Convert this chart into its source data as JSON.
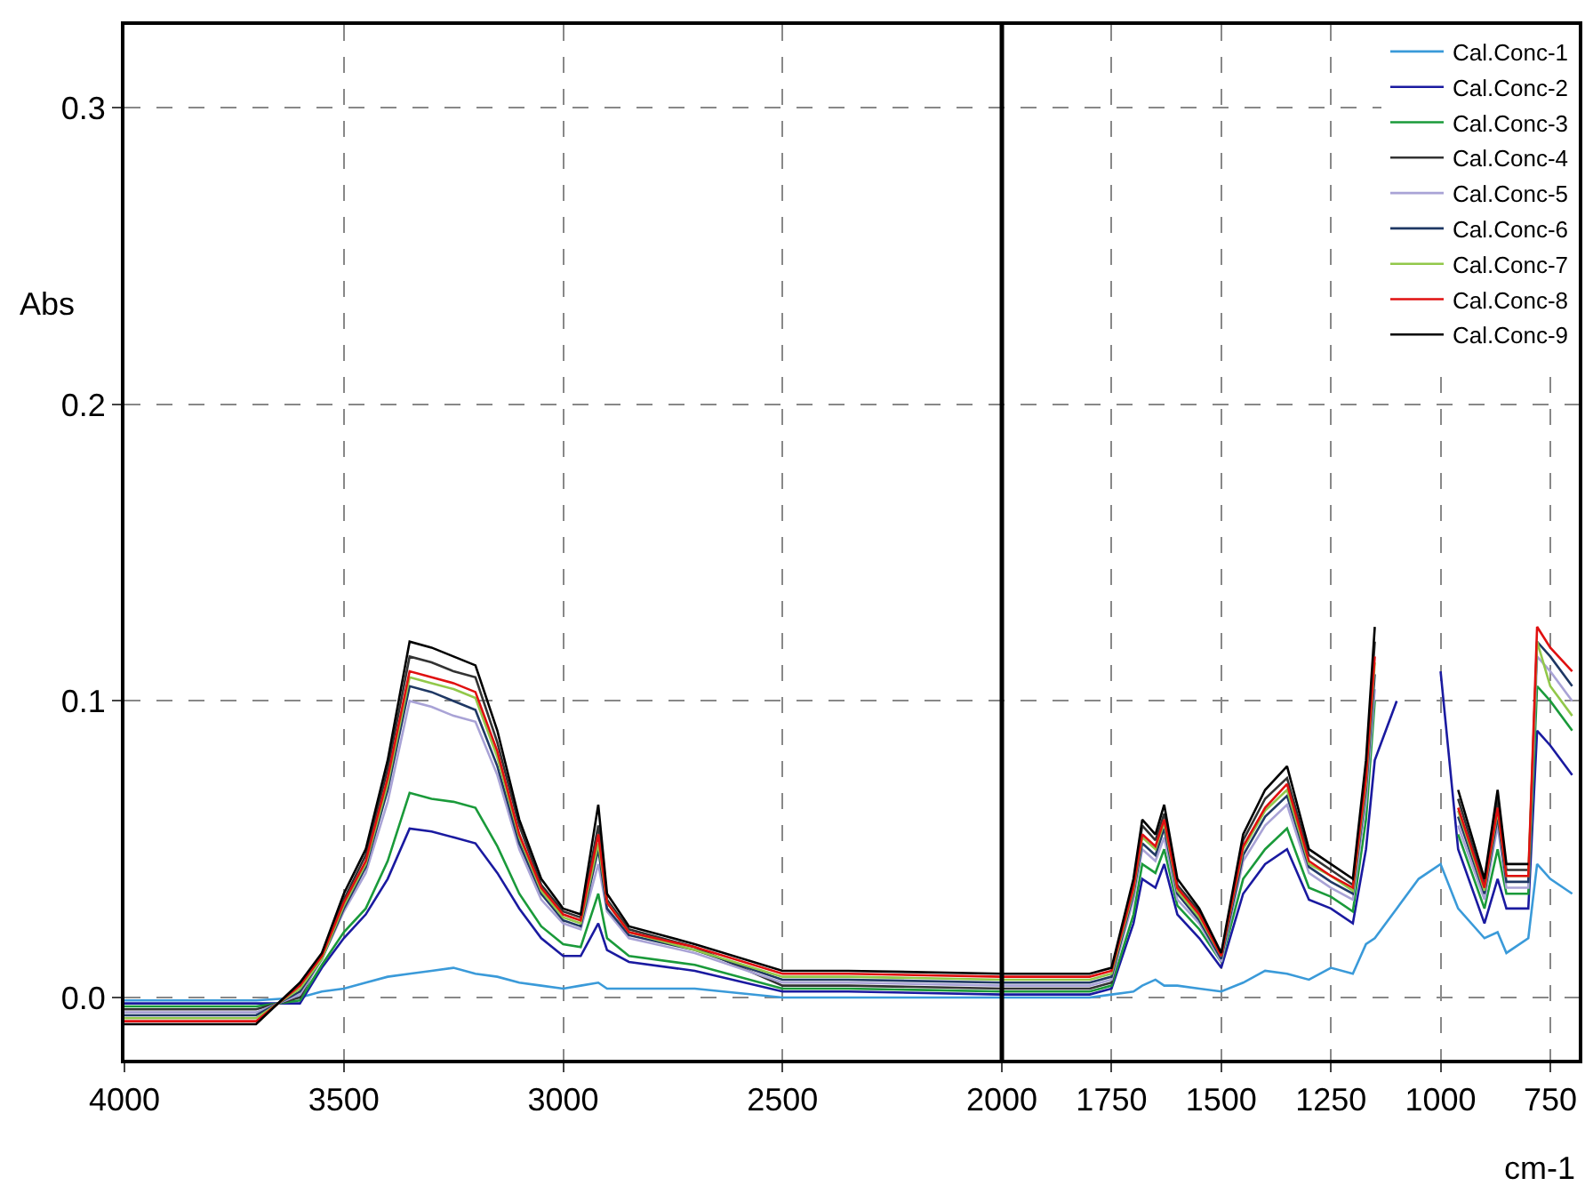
{
  "chart_data": {
    "type": "line",
    "xlabel": "cm-1",
    "ylabel": "Abs",
    "x": [
      4000,
      3700,
      3600,
      3550,
      3500,
      3450,
      3400,
      3350,
      3300,
      3250,
      3200,
      3150,
      3100,
      3050,
      3000,
      2960,
      2920,
      2900,
      2850,
      2700,
      2500,
      2350,
      2000,
      1800,
      1750,
      1700,
      1680,
      1650,
      1630,
      1600,
      1550,
      1500,
      1450,
      1400,
      1350,
      1300,
      1250,
      1200,
      1170,
      1150,
      1100,
      1050,
      1000,
      960,
      900,
      870,
      850,
      800,
      780,
      750,
      700
    ],
    "series": [
      {
        "name": "Cal.Conc-1",
        "color": "#3a9ad9",
        "values": [
          -0.001,
          -0.001,
          0.0,
          0.002,
          0.003,
          0.005,
          0.007,
          0.008,
          0.009,
          0.01,
          0.008,
          0.007,
          0.005,
          0.004,
          0.003,
          0.004,
          0.005,
          0.003,
          0.003,
          0.003,
          0.0,
          0.0,
          0.0,
          0.0,
          0.001,
          0.002,
          0.004,
          0.006,
          0.004,
          0.004,
          0.003,
          0.002,
          0.005,
          0.009,
          0.008,
          0.006,
          0.01,
          0.008,
          0.018,
          0.02,
          0.03,
          0.04,
          0.045,
          0.03,
          0.02,
          0.022,
          0.015,
          0.02,
          0.045,
          0.04,
          0.035
        ]
      },
      {
        "name": "Cal.Conc-2",
        "color": "#1a1aa0",
        "values": [
          -0.002,
          -0.002,
          -0.002,
          0.01,
          0.02,
          0.028,
          0.04,
          0.057,
          0.056,
          0.054,
          0.052,
          0.042,
          0.03,
          0.02,
          0.014,
          0.014,
          0.025,
          0.016,
          0.012,
          0.009,
          0.002,
          0.002,
          0.001,
          0.001,
          0.003,
          0.025,
          0.04,
          0.037,
          0.045,
          0.028,
          0.02,
          0.01,
          0.035,
          0.045,
          0.05,
          0.033,
          0.03,
          0.025,
          0.05,
          0.08,
          0.1,
          null,
          0.11,
          0.05,
          0.025,
          0.04,
          0.03,
          0.03,
          0.09,
          0.085,
          0.075
        ]
      },
      {
        "name": "Cal.Conc-3",
        "color": "#1a9a3a",
        "values": [
          -0.003,
          -0.003,
          -0.001,
          0.011,
          0.022,
          0.03,
          0.046,
          0.069,
          0.067,
          0.066,
          0.064,
          0.051,
          0.035,
          0.024,
          0.018,
          0.017,
          0.035,
          0.02,
          0.014,
          0.011,
          0.003,
          0.003,
          0.002,
          0.002,
          0.004,
          0.028,
          0.045,
          0.042,
          0.05,
          0.031,
          0.023,
          0.012,
          0.04,
          0.05,
          0.057,
          0.037,
          0.034,
          0.029,
          0.06,
          0.1,
          null,
          null,
          null,
          0.055,
          0.03,
          0.05,
          0.035,
          0.035,
          0.105,
          0.1,
          0.09
        ]
      },
      {
        "name": "Cal.Conc-4",
        "color": "#333333",
        "values": [
          -0.004,
          -0.004,
          0.0,
          0.014,
          0.033,
          0.048,
          0.077,
          0.115,
          0.113,
          0.11,
          0.108,
          0.086,
          0.058,
          0.038,
          0.029,
          0.027,
          0.058,
          0.033,
          0.023,
          0.017,
          0.004,
          0.004,
          0.003,
          0.003,
          0.005,
          0.038,
          0.058,
          0.053,
          0.062,
          0.038,
          0.029,
          0.014,
          0.053,
          0.067,
          0.074,
          0.048,
          0.043,
          0.038,
          0.077,
          0.12,
          null,
          null,
          null,
          0.067,
          0.038,
          0.067,
          0.043,
          0.043,
          null,
          null,
          null
        ]
      },
      {
        "name": "Cal.Conc-5",
        "color": "#a9a3d6",
        "values": [
          -0.005,
          -0.005,
          0.001,
          0.013,
          0.029,
          0.042,
          0.066,
          0.1,
          0.098,
          0.095,
          0.093,
          0.075,
          0.05,
          0.033,
          0.025,
          0.023,
          0.045,
          0.029,
          0.02,
          0.015,
          0.005,
          0.005,
          0.004,
          0.004,
          0.006,
          0.033,
          0.05,
          0.046,
          0.054,
          0.033,
          0.025,
          0.012,
          0.046,
          0.058,
          0.065,
          0.042,
          0.037,
          0.033,
          0.066,
          0.104,
          null,
          null,
          null,
          0.058,
          0.033,
          0.058,
          0.037,
          0.037,
          0.115,
          0.11,
          0.1
        ]
      },
      {
        "name": "Cal.Conc-6",
        "color": "#1f3864",
        "values": [
          -0.006,
          -0.006,
          0.002,
          0.013,
          0.03,
          0.044,
          0.07,
          0.105,
          0.103,
          0.1,
          0.097,
          0.078,
          0.052,
          0.035,
          0.026,
          0.024,
          0.05,
          0.03,
          0.021,
          0.016,
          0.006,
          0.006,
          0.005,
          0.005,
          0.007,
          0.035,
          0.052,
          0.048,
          0.057,
          0.035,
          0.026,
          0.013,
          0.048,
          0.061,
          0.068,
          0.044,
          0.039,
          0.035,
          0.07,
          0.109,
          null,
          null,
          null,
          0.061,
          0.035,
          0.061,
          0.039,
          0.039,
          0.12,
          0.115,
          0.105
        ]
      },
      {
        "name": "Cal.Conc-7",
        "color": "#92c84a",
        "values": [
          -0.007,
          -0.007,
          0.003,
          0.013,
          0.031,
          0.045,
          0.072,
          0.108,
          0.106,
          0.104,
          0.101,
          0.081,
          0.054,
          0.036,
          0.027,
          0.025,
          0.052,
          0.032,
          0.022,
          0.016,
          0.007,
          0.007,
          0.006,
          0.006,
          0.008,
          0.036,
          0.054,
          0.05,
          0.059,
          0.036,
          0.027,
          0.014,
          0.05,
          0.063,
          0.07,
          0.045,
          0.041,
          0.036,
          0.072,
          0.113,
          null,
          null,
          null,
          0.063,
          0.036,
          0.063,
          0.041,
          0.041,
          0.12,
          0.105,
          0.095
        ]
      },
      {
        "name": "Cal.Conc-8",
        "color": "#e01010",
        "values": [
          -0.008,
          -0.008,
          0.004,
          0.014,
          0.032,
          0.046,
          0.074,
          0.11,
          0.108,
          0.106,
          0.103,
          0.083,
          0.055,
          0.037,
          0.028,
          0.026,
          0.055,
          0.032,
          0.022,
          0.017,
          0.008,
          0.008,
          0.007,
          0.007,
          0.009,
          0.037,
          0.055,
          0.051,
          0.06,
          0.037,
          0.028,
          0.014,
          0.051,
          0.064,
          0.072,
          0.046,
          0.041,
          0.037,
          0.074,
          0.115,
          null,
          null,
          null,
          0.064,
          0.037,
          0.064,
          0.041,
          0.041,
          0.125,
          0.118,
          0.11
        ]
      },
      {
        "name": "Cal.Conc-9",
        "color": "#000000",
        "values": [
          -0.009,
          -0.009,
          0.005,
          0.015,
          0.035,
          0.05,
          0.08,
          0.12,
          0.118,
          0.115,
          0.112,
          0.09,
          0.06,
          0.04,
          0.03,
          0.028,
          0.065,
          0.035,
          0.024,
          0.018,
          0.009,
          0.009,
          0.008,
          0.008,
          0.01,
          0.04,
          0.06,
          0.055,
          0.065,
          0.04,
          0.03,
          0.015,
          0.055,
          0.07,
          0.078,
          0.05,
          0.045,
          0.04,
          0.08,
          0.125,
          null,
          null,
          null,
          0.07,
          0.04,
          0.07,
          0.045,
          0.045,
          null,
          null,
          null
        ]
      }
    ],
    "xlim": [
      4000,
      685
    ],
    "xticks": [
      4000,
      3500,
      3000,
      2500,
      2000,
      1750,
      1500,
      1250,
      1000,
      750
    ],
    "ylim": [
      -0.021,
      0.328
    ],
    "yticks": [
      {
        "value": 0,
        "label": "0.0"
      },
      0.1,
      0.2,
      0.3
    ],
    "ref_lines": [
      {
        "axis": "x",
        "value": 2000,
        "color": "#000000",
        "line_style": "solid"
      }
    ],
    "grid": true,
    "legend": "top right",
    "marker": "none",
    "line_style": "solid"
  }
}
